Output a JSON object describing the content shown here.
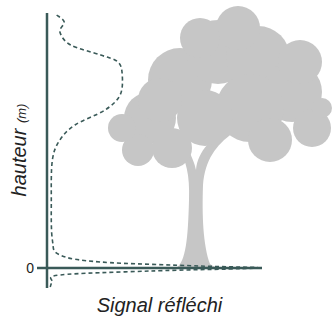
{
  "chart_data": {
    "type": "line",
    "orientation": "horizontal",
    "x_label": "hauteur (m)",
    "y_label": "Signal réfléchi",
    "x": [
      25.3,
      24.6,
      23.6,
      22.3,
      21.3,
      20.6,
      19.3,
      17.3,
      15.8,
      14.3,
      12.8,
      10.8,
      6.8,
      2.8,
      1.3,
      0.6,
      0.2,
      0,
      -0.3,
      -0.7,
      -1.4,
      -1.9
    ],
    "values": [
      0.45,
      0.8,
      0.6,
      1.1,
      2.5,
      3.3,
      3.5,
      3.4,
      2.7,
      1.3,
      0.6,
      0.25,
      0.2,
      0.25,
      0.6,
      2.5,
      7.1,
      9.8,
      4.8,
      0.6,
      0.25,
      0.15
    ],
    "xlim": [
      -2,
      25.5
    ],
    "xticks": [
      0
    ],
    "ylim": [
      0,
      10
    ],
    "yticks": [],
    "tick_labels": "x",
    "color": "#3a5a58",
    "line_style": "dashed"
  }
}
